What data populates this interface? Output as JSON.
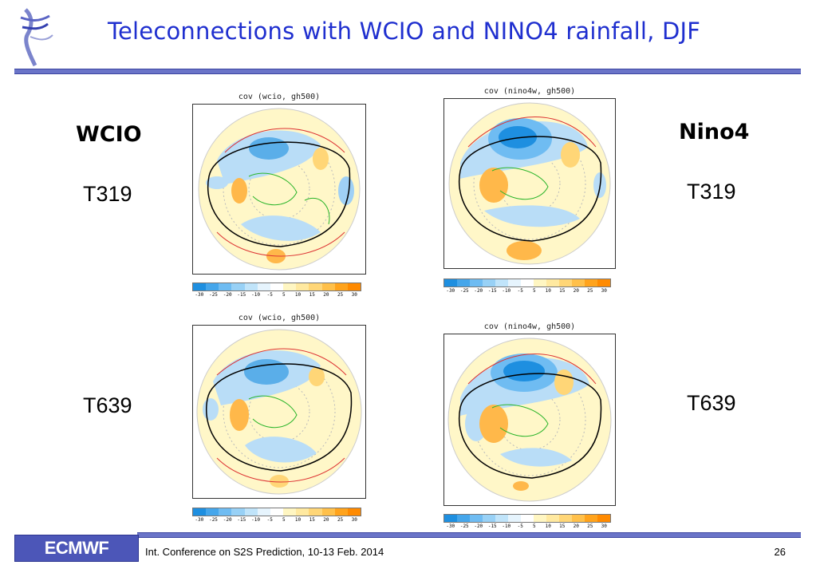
{
  "slide": {
    "title": "Teleconnections with WCIO and NINO4 rainfall, DJF",
    "left_heading": "WCIO",
    "right_heading": "Nino4",
    "left_top_res": "T319",
    "right_top_res": "T319",
    "left_bottom_res": "T639",
    "right_bottom_res": "T639"
  },
  "panels": {
    "wcio_t319": {
      "title": "cov (wcio, gh500)"
    },
    "nino4_t319": {
      "title": "cov (nino4w, gh500)"
    },
    "wcio_t639": {
      "title": "cov (wcio, gh500)"
    },
    "nino4_t639": {
      "title": "cov (nino4w, gh500)"
    }
  },
  "colorbar": {
    "ticks": [
      "-30",
      "-25",
      "-20",
      "-15",
      "-10",
      "-5",
      "5",
      "10",
      "15",
      "20",
      "25",
      "30"
    ],
    "colors": [
      "#1e8fe0",
      "#45a6eb",
      "#6fbcf2",
      "#98d1f6",
      "#c0e4fa",
      "#e6f4fd",
      "#ffffff",
      "#fff6c2",
      "#ffe9a0",
      "#ffd677",
      "#ffc04a",
      "#ffa31c",
      "#ff8a00"
    ]
  },
  "footer": {
    "logo_text": "ECMWF",
    "conference": "Int. Conference on S2S Prediction, 10-13 Feb. 2014",
    "page": "26"
  },
  "icons": {
    "logo": "ecmwf-bird-logo-icon"
  }
}
